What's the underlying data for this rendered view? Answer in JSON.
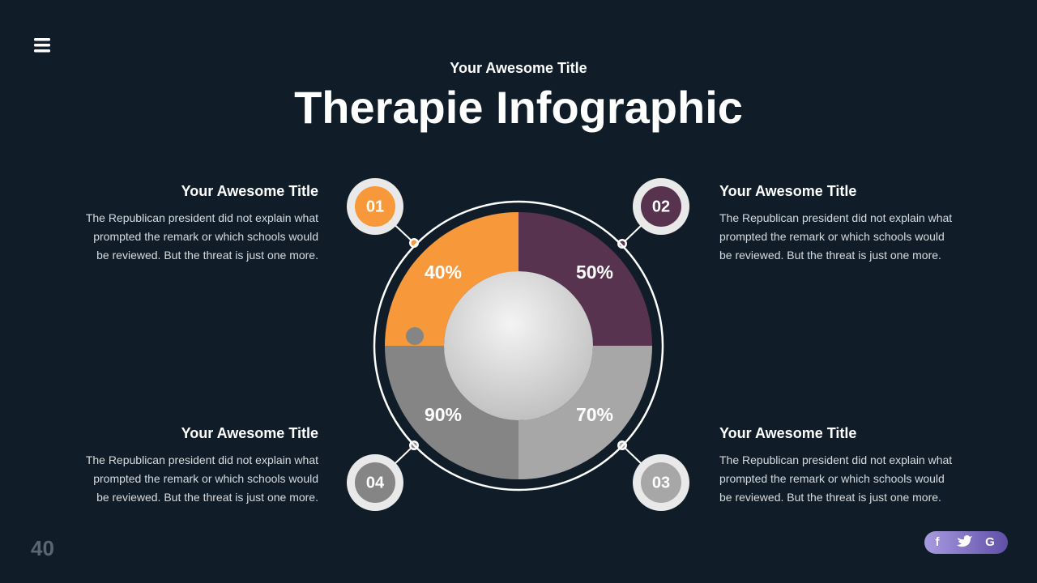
{
  "header": {
    "subtitle": "Your Awesome Title",
    "title": "Therapie Infographic"
  },
  "items": [
    {
      "number": "01",
      "percent": "40%",
      "title": "Your Awesome Title",
      "lines": [
        "The Republican president did not explain what",
        "prompted the remark or which schools would",
        "be reviewed. But the threat is just one more."
      ]
    },
    {
      "number": "02",
      "percent": "50%",
      "title": "Your Awesome Title",
      "lines": [
        "The Republican president did not explain what",
        "prompted the remark or which schools would",
        "be reviewed. But the threat is just one more."
      ]
    },
    {
      "number": "03",
      "percent": "70%",
      "title": "Your Awesome Title",
      "lines": [
        "The Republican president did not explain what",
        "prompted the remark or which schools would",
        "be reviewed. But the threat is just one more."
      ]
    },
    {
      "number": "04",
      "percent": "90%",
      "title": "Your Awesome Title",
      "lines": [
        "The Republican president did not explain what",
        "prompted the remark or which schools would",
        "be reviewed. But the threat is just one more."
      ]
    }
  ],
  "footer": {
    "page_number": "40",
    "social": [
      "f",
      "G"
    ]
  }
}
